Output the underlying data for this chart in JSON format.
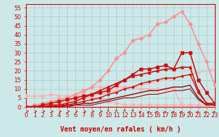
{
  "xlabel": "Vent moyen/en rafales ( km/h )",
  "xlim": [
    0,
    23
  ],
  "ylim": [
    0,
    57
  ],
  "xticks": [
    0,
    1,
    2,
    3,
    4,
    5,
    6,
    7,
    8,
    9,
    10,
    11,
    12,
    13,
    14,
    15,
    16,
    17,
    18,
    19,
    20,
    21,
    22,
    23
  ],
  "yticks": [
    0,
    5,
    10,
    15,
    20,
    25,
    30,
    35,
    40,
    45,
    50,
    55
  ],
  "bg_color": "#cce8e8",
  "grid_color": "#aacccc",
  "series": [
    {
      "x": [
        0,
        1,
        2,
        3,
        4,
        5,
        6,
        7,
        8,
        9,
        10,
        11,
        12,
        13,
        14,
        15,
        16,
        17,
        18,
        19,
        20,
        21,
        22,
        23
      ],
      "y": [
        6,
        6,
        6,
        7,
        6,
        6,
        6,
        6,
        5,
        5,
        3,
        2,
        1,
        1,
        1,
        1,
        1,
        1,
        1,
        1,
        1,
        1,
        1,
        1
      ],
      "color": "#ffb0b0",
      "lw": 1.0,
      "marker": "D",
      "ms": 2.5,
      "zorder": 3
    },
    {
      "x": [
        0,
        1,
        2,
        3,
        4,
        5,
        6,
        7,
        8,
        9,
        10,
        11,
        12,
        13,
        14,
        15,
        16,
        17,
        18,
        19,
        20,
        21,
        22,
        23
      ],
      "y": [
        0,
        0,
        1,
        1,
        2,
        3,
        5,
        8,
        11,
        11,
        11,
        11,
        11,
        11,
        10,
        10,
        10,
        10,
        10,
        1,
        1,
        1,
        1,
        1
      ],
      "color": "#ffb0b0",
      "lw": 1.0,
      "marker": "D",
      "ms": 2.5,
      "zorder": 3
    },
    {
      "x": [
        0,
        1,
        2,
        3,
        4,
        5,
        6,
        7,
        8,
        9,
        10,
        11,
        12,
        13,
        14,
        15,
        16,
        17,
        18,
        19,
        20,
        21,
        22,
        23
      ],
      "y": [
        0,
        1,
        2,
        3,
        4,
        5,
        7,
        9,
        11,
        15,
        20,
        27,
        30,
        37,
        38,
        40,
        46,
        47,
        50,
        53,
        46,
        35,
        25,
        12
      ],
      "color": "#ff9090",
      "lw": 1.2,
      "marker": "D",
      "ms": 2.5,
      "zorder": 3
    },
    {
      "x": [
        0,
        1,
        2,
        3,
        4,
        5,
        6,
        7,
        8,
        9,
        10,
        11,
        12,
        13,
        14,
        15,
        16,
        17,
        18,
        19,
        20,
        21,
        22,
        23
      ],
      "y": [
        0,
        0,
        0,
        1,
        2,
        3,
        4,
        5,
        6,
        7,
        8,
        9,
        10,
        11,
        12,
        13,
        14,
        15,
        16,
        17,
        18,
        19,
        20,
        21
      ],
      "color": "#ffb0b0",
      "lw": 1.0,
      "marker": null,
      "ms": 0,
      "zorder": 2
    },
    {
      "x": [
        0,
        1,
        2,
        3,
        4,
        5,
        6,
        7,
        8,
        9,
        10,
        11,
        12,
        13,
        14,
        15,
        16,
        17,
        18,
        19,
        20,
        21,
        22,
        23
      ],
      "y": [
        0,
        0,
        1,
        2,
        3,
        4,
        5,
        6,
        7,
        8,
        9,
        12,
        15,
        18,
        21,
        21,
        22,
        23,
        21,
        30,
        30,
        15,
        8,
        2
      ],
      "color": "#cc1111",
      "lw": 1.2,
      "marker": "s",
      "ms": 2.5,
      "zorder": 4
    },
    {
      "x": [
        0,
        1,
        2,
        3,
        4,
        5,
        6,
        7,
        8,
        9,
        10,
        11,
        12,
        13,
        14,
        15,
        16,
        17,
        18,
        19,
        20,
        21,
        22,
        23
      ],
      "y": [
        0,
        0,
        0,
        1,
        1,
        2,
        3,
        5,
        7,
        9,
        11,
        13,
        15,
        17,
        18,
        19,
        20,
        21,
        21,
        22,
        22,
        9,
        2,
        2
      ],
      "color": "#cc1111",
      "lw": 1.2,
      "marker": "^",
      "ms": 2.5,
      "zorder": 4
    },
    {
      "x": [
        0,
        1,
        2,
        3,
        4,
        5,
        6,
        7,
        8,
        9,
        10,
        11,
        12,
        13,
        14,
        15,
        16,
        17,
        18,
        19,
        20,
        21,
        22,
        23
      ],
      "y": [
        0,
        0,
        0,
        0,
        1,
        1,
        2,
        3,
        4,
        5,
        7,
        8,
        10,
        11,
        13,
        14,
        15,
        16,
        16,
        17,
        18,
        8,
        2,
        1
      ],
      "color": "#cc1111",
      "lw": 1.0,
      "marker": "P",
      "ms": 2.0,
      "zorder": 4
    },
    {
      "x": [
        0,
        1,
        2,
        3,
        4,
        5,
        6,
        7,
        8,
        9,
        10,
        11,
        12,
        13,
        14,
        15,
        16,
        17,
        18,
        19,
        20,
        21,
        22,
        23
      ],
      "y": [
        0,
        0,
        0,
        0,
        0,
        1,
        1,
        2,
        2,
        3,
        4,
        5,
        6,
        7,
        8,
        9,
        9,
        10,
        11,
        11,
        12,
        5,
        1,
        1
      ],
      "color": "#880000",
      "lw": 1.0,
      "marker": null,
      "ms": 0,
      "zorder": 3
    },
    {
      "x": [
        0,
        1,
        2,
        3,
        4,
        5,
        6,
        7,
        8,
        9,
        10,
        11,
        12,
        13,
        14,
        15,
        16,
        17,
        18,
        19,
        20,
        21,
        22,
        23
      ],
      "y": [
        0,
        0,
        0,
        0,
        0,
        0,
        1,
        1,
        1,
        2,
        3,
        4,
        5,
        5,
        6,
        7,
        7,
        8,
        9,
        9,
        10,
        4,
        1,
        1
      ],
      "color": "#990000",
      "lw": 0.8,
      "marker": null,
      "ms": 0,
      "zorder": 3
    }
  ],
  "xlabel_color": "#cc0000",
  "xlabel_fontsize": 7,
  "tick_color": "#cc0000",
  "tick_fontsize": 6
}
